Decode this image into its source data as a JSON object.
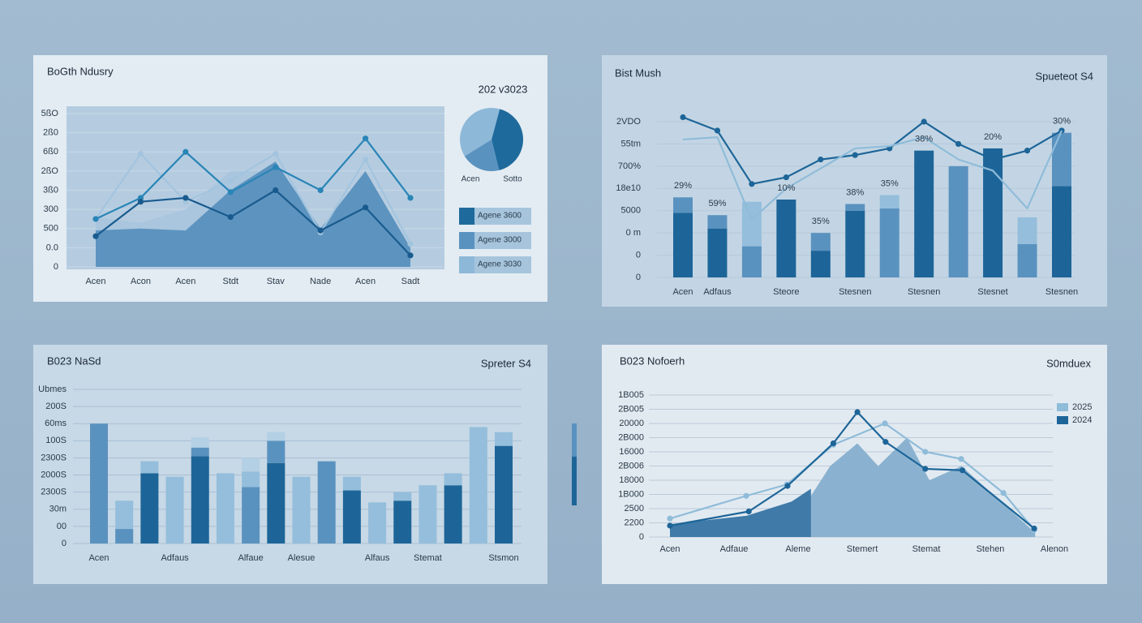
{
  "chart_data": [
    {
      "type": "line",
      "title": "BoGth Ndusry",
      "categories": [
        "Acen",
        "Acon",
        "Acen",
        "Stdt",
        "Stav",
        "Nade",
        "Acen",
        "Sadt"
      ],
      "ylim": [
        0,
        8
      ],
      "yticks": [
        0,
        {
          "value": 1,
          "label": "0.0"
        },
        {
          "value": 2,
          "label": "500"
        },
        {
          "value": 3,
          "label": "300"
        },
        {
          "value": 4,
          "label": "3ß0"
        },
        {
          "value": 5,
          "label": "2ßO"
        },
        {
          "value": 6,
          "label": "6ß0"
        },
        {
          "value": 7,
          "label": "2ß0"
        },
        {
          "value": 8,
          "label": "5ßO"
        }
      ],
      "grid": true,
      "series": [
        {
          "type": "area",
          "color": "#a9c6de",
          "values": [
            2.6,
            2.3,
            3.0,
            5.0,
            5.0,
            2.0,
            4.6,
            1.0
          ]
        },
        {
          "type": "area",
          "color": "#5d93bf",
          "values": [
            1.9,
            2.0,
            1.9,
            4.0,
            5.5,
            2.0,
            5.0,
            1.0
          ]
        },
        {
          "type": "line",
          "color": "#a3c4de",
          "dots": true,
          "values": [
            2.5,
            5.9,
            3.4,
            4.5,
            5.9,
            1.8,
            5.6,
            1.2
          ]
        },
        {
          "type": "line",
          "color": "#2a85b7",
          "dots": true,
          "values": [
            2.5,
            3.6,
            6.0,
            3.9,
            5.2,
            4.0,
            6.7,
            3.6
          ]
        },
        {
          "type": "line",
          "color": "#195b8e",
          "dots": true,
          "values": [
            1.6,
            3.4,
            3.6,
            2.6,
            4.0,
            1.9,
            3.1,
            0.6
          ]
        }
      ]
    },
    {
      "type": "pie",
      "title": "202 v3023",
      "categories": [
        "Agene 3600",
        "Agene 3000",
        "Agene 3030"
      ],
      "values": [
        42,
        20,
        38
      ],
      "colors": [
        "#1f6a9c",
        "#5a92bf",
        "#8db8d8"
      ],
      "annotations": [
        "Acen",
        "Sotto"
      ]
    },
    {
      "type": "bar",
      "title": "Bist Mush",
      "subtitle": "Spueteot S4",
      "categories": [
        "Acen",
        "Adfaus",
        null,
        "Steore",
        null,
        "Stesnen",
        null,
        "Stesnen",
        null,
        "Stesnet",
        null,
        "Stesnen"
      ],
      "ylim": [
        0,
        7
      ],
      "yticks": [
        0,
        {
          "value": 1,
          "label": "0"
        },
        {
          "value": 2,
          "label": "0 m"
        },
        {
          "value": 3,
          "label": "5000"
        },
        {
          "value": 4,
          "label": "18e10"
        },
        {
          "value": 5,
          "label": "700%"
        },
        {
          "value": 6,
          "label": "55tm"
        },
        {
          "value": 7,
          "label": "2VDO"
        }
      ],
      "grid": true,
      "series": [
        {
          "values": [
            2.9,
            2.2,
            1.4,
            3.5,
            1.2,
            3.0,
            3.1,
            5.7,
            5.0,
            5.8,
            1.5,
            4.1
          ],
          "colors": [
            "#1d6598",
            "#1d6598",
            "#5a92bf",
            "#1d6598",
            "#1d6598",
            "#1d6598",
            "#5a92bf",
            "#1d6598",
            "#5a92bf",
            "#1d6598",
            "#5a92bf",
            "#1d6598"
          ]
        },
        {
          "values": [
            0.7,
            0.6,
            2.0,
            0,
            0.8,
            0.3,
            0.6,
            0,
            0,
            0,
            1.2,
            2.4
          ],
          "colors": [
            "#5a92bf",
            "#5a92bf",
            "#94bedb",
            "#5a92bf",
            "#5a92bf",
            "#5a92bf",
            "#94bedb",
            "#5a92bf",
            "#94bedb",
            "#5a92bf",
            "#94bedb",
            "#5a92bf"
          ]
        },
        {
          "type": "line",
          "color": "#1d6598",
          "dots": true,
          "values": [
            7.2,
            6.6,
            4.2,
            4.5,
            5.3,
            5.5,
            5.8,
            7.0,
            6.0,
            5.3,
            5.7,
            6.6
          ]
        },
        {
          "type": "line",
          "color": "#8fbcd9",
          "dots": false,
          "values": [
            6.2,
            6.3,
            2.6,
            4.0,
            4.9,
            5.8,
            5.9,
            6.3,
            5.3,
            4.8,
            3.1,
            6.6
          ]
        }
      ],
      "annotations": [
        {
          "text": "29%",
          "index": 0
        },
        {
          "text": "59%",
          "index": 1
        },
        {
          "text": "10%",
          "index": 3
        },
        {
          "text": "35%",
          "index": 4
        },
        {
          "text": "38%",
          "index": 5
        },
        {
          "text": "35%",
          "index": 6
        },
        {
          "text": "38%",
          "index": 7
        },
        {
          "text": "20%",
          "index": 9
        },
        {
          "text": "30%",
          "index": 11
        }
      ]
    },
    {
      "type": "bar",
      "title": "B023 NaSd",
      "subtitle": "Spreter S4",
      "categories": [
        "Acen",
        null,
        null,
        "Adfaus",
        null,
        null,
        "Alfaue",
        null,
        "Alesue",
        null,
        null,
        "Alfaus",
        null,
        "Stemat",
        null,
        null,
        "Stsmon"
      ],
      "ylim": [
        0,
        9
      ],
      "yticks": [
        0,
        {
          "value": 1,
          "label": "00"
        },
        {
          "value": 2,
          "label": "30m"
        },
        {
          "value": 3,
          "label": "2300S"
        },
        {
          "value": 4,
          "label": "2000S"
        },
        {
          "value": 5,
          "label": "2300S"
        },
        {
          "value": 6,
          "label": "100S"
        },
        {
          "value": 7,
          "label": "60ms"
        },
        {
          "value": 8,
          "label": "200S"
        },
        {
          "value": 9,
          "label": "Ubmes"
        }
      ],
      "grid": true,
      "series": [
        {
          "values": [
            7.0,
            0.85,
            4.1,
            3.9,
            5.1,
            4.1,
            3.3,
            4.7,
            3.9,
            4.8,
            3.1,
            2.4,
            2.5,
            3.4,
            3.4,
            6.8,
            5.7
          ],
          "colors": [
            "#5a92bf",
            "#5a92bf",
            "#1d6598",
            "#94bedb",
            "#1d6598",
            "#94bedb",
            "#5a92bf",
            "#1d6598",
            "#94bedb",
            "#5a92bf",
            "#1d6598",
            "#94bedb",
            "#1d6598",
            "#94bedb",
            "#1d6598",
            "#94bedb",
            "#1d6598"
          ]
        },
        {
          "values": [
            0,
            1.65,
            0.7,
            0,
            0.5,
            0,
            0.9,
            1.3,
            0,
            0,
            0.8,
            0,
            0.5,
            0,
            0.7,
            0,
            0.8
          ],
          "colors": [
            "#94bedb",
            "#94bedb",
            "#94bedb",
            "#94bedb",
            "#5a92bf",
            "#94bedb",
            "#94bedb",
            "#5a92bf",
            "#94bedb",
            "#94bedb",
            "#94bedb",
            "#94bedb",
            "#94bedb",
            "#94bedb",
            "#94bedb",
            "#94bedb",
            "#94bedb"
          ]
        },
        {
          "values": [
            0,
            0,
            0,
            0,
            0.6,
            0,
            0.8,
            0.5,
            0,
            0,
            0,
            0,
            0,
            0,
            0,
            0,
            0
          ],
          "colors": [
            "#b3d0e4",
            "#b3d0e4",
            "#b3d0e4",
            "#b3d0e4",
            "#b3d0e4",
            "#b3d0e4",
            "#b3d0e4",
            "#b3d0e4",
            "#b3d0e4",
            "#b3d0e4",
            "#b3d0e4",
            "#b3d0e4",
            "#b3d0e4",
            "#b3d0e4",
            "#b3d0e4",
            "#b3d0e4",
            "#b3d0e4"
          ]
        }
      ]
    },
    {
      "type": "line",
      "title": "B023 Nofoerh",
      "subtitle": "S0mduex",
      "xlim": [
        0,
        12
      ],
      "xticks": [
        {
          "value": 0,
          "label": "Acen"
        },
        {
          "value": 2,
          "label": "Adfaue"
        },
        {
          "value": 4,
          "label": "Aleme"
        },
        {
          "value": 6,
          "label": "Stemert"
        },
        {
          "value": 8,
          "label": "Stemat"
        },
        {
          "value": 10,
          "label": "Stehen"
        },
        {
          "value": 12,
          "label": "Alenon"
        }
      ],
      "ylim": [
        0,
        10
      ],
      "yticks": [
        0,
        {
          "value": 1,
          "label": "2200"
        },
        {
          "value": 2,
          "label": "2500"
        },
        {
          "value": 3,
          "label": "1B000"
        },
        {
          "value": 4,
          "label": "18000"
        },
        {
          "value": 5,
          "label": "2B006"
        },
        {
          "value": 6,
          "label": "16000"
        },
        {
          "value": 7,
          "label": "2B000"
        },
        {
          "value": 8,
          "label": "20000"
        },
        {
          "value": 9,
          "label": "2B005"
        },
        {
          "value": 10,
          "label": "1B005"
        }
      ],
      "grid": true,
      "legend": "top-right",
      "series": [
        {
          "type": "area",
          "color": "#8ab2d0",
          "x": [
            0,
            2.5,
            4.0,
            5.0,
            5.85,
            6.5,
            7.4,
            8.1,
            9.1,
            11.4
          ],
          "values": [
            0.5,
            0.8,
            1.5,
            5.0,
            6.6,
            5.0,
            7.0,
            4.0,
            5.0,
            0.3
          ]
        },
        {
          "type": "area",
          "color": "#3f7aa8",
          "x": [
            0,
            2.4,
            3.8,
            4.4
          ],
          "values": [
            0.9,
            1.5,
            2.5,
            3.4
          ]
        },
        {
          "type": "line",
          "name": "2025",
          "color": "#8fbcd9",
          "dots": true,
          "x": [
            0,
            2.38,
            3.65,
            5.1,
            6.71,
            7.97,
            9.09,
            10.41,
            11.37
          ],
          "values": [
            1.3,
            2.9,
            3.7,
            6.5,
            8.0,
            6.0,
            5.5,
            3.1,
            0.5
          ]
        },
        {
          "type": "line",
          "name": "2024",
          "color": "#1d6598",
          "dots": true,
          "x": [
            0,
            2.46,
            3.67,
            5.1,
            5.85,
            6.73,
            7.97,
            9.13,
            11.37
          ],
          "values": [
            0.8,
            1.8,
            3.6,
            6.6,
            8.8,
            6.7,
            4.8,
            4.7,
            0.6
          ]
        }
      ]
    }
  ]
}
